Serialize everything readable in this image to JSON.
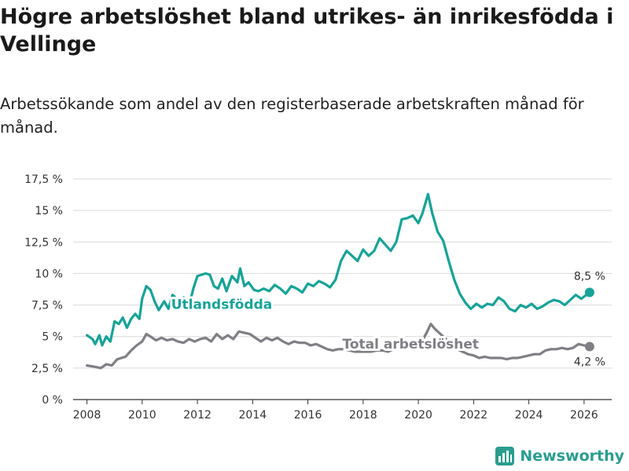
{
  "header": {
    "title": "Högre arbetslöshet bland utrikes- än inrikesfödda i Vellinge",
    "subtitle": "Arbetssökande som andel av den registerbaserade arbetskraften månad för månad."
  },
  "brand": {
    "name": "Newsworthy",
    "color": "#2a9d8f"
  },
  "chart_data": {
    "type": "line",
    "title": "Högre arbetslöshet bland utrikes- än inrikesfödda i Vellinge",
    "subtitle": "Arbetssökande som andel av den registerbaserade arbetskraften månad för månad.",
    "xlabel": "",
    "ylabel": "",
    "xlim": [
      2007.5,
      2027
    ],
    "ylim": [
      0,
      17.5
    ],
    "grid": true,
    "x_ticks": [
      2008,
      2010,
      2012,
      2014,
      2016,
      2018,
      2020,
      2022,
      2024,
      2026
    ],
    "x_tick_labels": [
      "2008",
      "2010",
      "2012",
      "2014",
      "2016",
      "2018",
      "2020",
      "2022",
      "2024",
      "2026"
    ],
    "y_ticks": [
      0,
      2.5,
      5,
      7.5,
      10,
      12.5,
      15,
      17.5
    ],
    "y_tick_labels": [
      "0 %",
      "2,5 %",
      "5 %",
      "7,5 %",
      "10 %",
      "12,5 %",
      "15 %",
      "17,5 %"
    ],
    "series": [
      {
        "name": "Utlandsfödda",
        "color": "#17a398",
        "end_label": "8,5 %",
        "points": [
          [
            2008.0,
            5.1
          ],
          [
            2008.2,
            4.8
          ],
          [
            2008.3,
            4.4
          ],
          [
            2008.45,
            5.1
          ],
          [
            2008.55,
            4.3
          ],
          [
            2008.7,
            5.0
          ],
          [
            2008.85,
            4.6
          ],
          [
            2009.0,
            6.2
          ],
          [
            2009.15,
            6.0
          ],
          [
            2009.3,
            6.5
          ],
          [
            2009.45,
            5.7
          ],
          [
            2009.6,
            6.4
          ],
          [
            2009.75,
            6.8
          ],
          [
            2009.9,
            6.4
          ],
          [
            2010.0,
            8.0
          ],
          [
            2010.15,
            9.0
          ],
          [
            2010.3,
            8.7
          ],
          [
            2010.45,
            7.8
          ],
          [
            2010.6,
            7.1
          ],
          [
            2010.8,
            7.8
          ],
          [
            2010.95,
            7.2
          ],
          [
            2011.1,
            8.3
          ],
          [
            2011.3,
            7.9
          ],
          [
            2011.5,
            8.1
          ],
          [
            2011.7,
            7.4
          ],
          [
            2011.85,
            8.8
          ],
          [
            2012.0,
            9.8
          ],
          [
            2012.3,
            10.0
          ],
          [
            2012.45,
            9.9
          ],
          [
            2012.6,
            9.0
          ],
          [
            2012.75,
            8.8
          ],
          [
            2012.9,
            9.6
          ],
          [
            2013.05,
            8.6
          ],
          [
            2013.25,
            9.8
          ],
          [
            2013.45,
            9.3
          ],
          [
            2013.55,
            10.4
          ],
          [
            2013.7,
            9.0
          ],
          [
            2013.85,
            9.3
          ],
          [
            2014.05,
            8.7
          ],
          [
            2014.2,
            8.6
          ],
          [
            2014.4,
            8.8
          ],
          [
            2014.6,
            8.6
          ],
          [
            2014.8,
            9.1
          ],
          [
            2015.0,
            8.8
          ],
          [
            2015.2,
            8.4
          ],
          [
            2015.4,
            9.0
          ],
          [
            2015.6,
            8.8
          ],
          [
            2015.8,
            8.5
          ],
          [
            2016.0,
            9.2
          ],
          [
            2016.2,
            9.0
          ],
          [
            2016.4,
            9.4
          ],
          [
            2016.6,
            9.2
          ],
          [
            2016.8,
            8.9
          ],
          [
            2017.0,
            9.5
          ],
          [
            2017.2,
            11.0
          ],
          [
            2017.4,
            11.8
          ],
          [
            2017.6,
            11.4
          ],
          [
            2017.8,
            11.0
          ],
          [
            2018.0,
            11.9
          ],
          [
            2018.2,
            11.4
          ],
          [
            2018.4,
            11.8
          ],
          [
            2018.6,
            12.8
          ],
          [
            2018.8,
            12.3
          ],
          [
            2019.0,
            11.8
          ],
          [
            2019.2,
            12.5
          ],
          [
            2019.4,
            14.3
          ],
          [
            2019.6,
            14.4
          ],
          [
            2019.8,
            14.6
          ],
          [
            2020.0,
            14.0
          ],
          [
            2020.15,
            14.8
          ],
          [
            2020.35,
            16.3
          ],
          [
            2020.5,
            14.8
          ],
          [
            2020.7,
            13.3
          ],
          [
            2020.9,
            12.6
          ],
          [
            2021.1,
            11.0
          ],
          [
            2021.3,
            9.5
          ],
          [
            2021.5,
            8.4
          ],
          [
            2021.7,
            7.7
          ],
          [
            2021.9,
            7.2
          ],
          [
            2022.1,
            7.6
          ],
          [
            2022.3,
            7.3
          ],
          [
            2022.5,
            7.6
          ],
          [
            2022.7,
            7.5
          ],
          [
            2022.9,
            8.1
          ],
          [
            2023.1,
            7.8
          ],
          [
            2023.3,
            7.2
          ],
          [
            2023.5,
            7.0
          ],
          [
            2023.7,
            7.5
          ],
          [
            2023.9,
            7.3
          ],
          [
            2024.1,
            7.6
          ],
          [
            2024.3,
            7.2
          ],
          [
            2024.5,
            7.4
          ],
          [
            2024.7,
            7.7
          ],
          [
            2024.9,
            7.9
          ],
          [
            2025.1,
            7.8
          ],
          [
            2025.3,
            7.5
          ],
          [
            2025.5,
            7.9
          ],
          [
            2025.7,
            8.3
          ],
          [
            2025.9,
            8.0
          ],
          [
            2026.2,
            8.5
          ]
        ]
      },
      {
        "name": "Total arbetslöshet",
        "color": "#7f7f85",
        "end_label": "4,2 %",
        "points": [
          [
            2008.0,
            2.7
          ],
          [
            2008.3,
            2.6
          ],
          [
            2008.5,
            2.5
          ],
          [
            2008.7,
            2.8
          ],
          [
            2008.9,
            2.7
          ],
          [
            2009.1,
            3.2
          ],
          [
            2009.4,
            3.4
          ],
          [
            2009.6,
            3.9
          ],
          [
            2009.8,
            4.3
          ],
          [
            2010.0,
            4.6
          ],
          [
            2010.15,
            5.2
          ],
          [
            2010.3,
            5.0
          ],
          [
            2010.5,
            4.7
          ],
          [
            2010.7,
            4.9
          ],
          [
            2010.9,
            4.7
          ],
          [
            2011.1,
            4.8
          ],
          [
            2011.3,
            4.6
          ],
          [
            2011.5,
            4.5
          ],
          [
            2011.7,
            4.8
          ],
          [
            2011.9,
            4.6
          ],
          [
            2012.1,
            4.8
          ],
          [
            2012.3,
            4.9
          ],
          [
            2012.5,
            4.6
          ],
          [
            2012.7,
            5.2
          ],
          [
            2012.9,
            4.8
          ],
          [
            2013.1,
            5.1
          ],
          [
            2013.3,
            4.8
          ],
          [
            2013.5,
            5.4
          ],
          [
            2013.7,
            5.3
          ],
          [
            2013.9,
            5.2
          ],
          [
            2014.1,
            4.9
          ],
          [
            2014.3,
            4.6
          ],
          [
            2014.5,
            4.9
          ],
          [
            2014.7,
            4.7
          ],
          [
            2014.9,
            4.9
          ],
          [
            2015.1,
            4.6
          ],
          [
            2015.3,
            4.4
          ],
          [
            2015.5,
            4.6
          ],
          [
            2015.7,
            4.5
          ],
          [
            2015.9,
            4.5
          ],
          [
            2016.1,
            4.3
          ],
          [
            2016.3,
            4.4
          ],
          [
            2016.5,
            4.2
          ],
          [
            2016.7,
            4.0
          ],
          [
            2016.9,
            3.9
          ],
          [
            2017.1,
            4.0
          ],
          [
            2017.3,
            4.0
          ],
          [
            2017.5,
            3.9
          ],
          [
            2017.7,
            3.8
          ],
          [
            2017.9,
            3.8
          ],
          [
            2018.1,
            3.8
          ],
          [
            2018.3,
            3.8
          ],
          [
            2018.5,
            3.9
          ],
          [
            2018.7,
            3.9
          ],
          [
            2018.9,
            3.8
          ],
          [
            2019.1,
            4.0
          ],
          [
            2019.3,
            4.0
          ],
          [
            2019.5,
            4.1
          ],
          [
            2019.7,
            4.2
          ],
          [
            2019.9,
            4.1
          ],
          [
            2020.1,
            4.5
          ],
          [
            2020.3,
            5.3
          ],
          [
            2020.45,
            6.0
          ],
          [
            2020.6,
            5.6
          ],
          [
            2020.8,
            5.2
          ],
          [
            2021.0,
            4.8
          ],
          [
            2021.2,
            4.4
          ],
          [
            2021.4,
            4.0
          ],
          [
            2021.6,
            3.8
          ],
          [
            2021.8,
            3.6
          ],
          [
            2022.0,
            3.5
          ],
          [
            2022.2,
            3.3
          ],
          [
            2022.4,
            3.4
          ],
          [
            2022.6,
            3.3
          ],
          [
            2022.8,
            3.3
          ],
          [
            2023.0,
            3.3
          ],
          [
            2023.2,
            3.2
          ],
          [
            2023.4,
            3.3
          ],
          [
            2023.6,
            3.3
          ],
          [
            2023.8,
            3.4
          ],
          [
            2024.0,
            3.5
          ],
          [
            2024.2,
            3.6
          ],
          [
            2024.4,
            3.6
          ],
          [
            2024.6,
            3.9
          ],
          [
            2024.8,
            4.0
          ],
          [
            2025.0,
            4.0
          ],
          [
            2025.2,
            4.1
          ],
          [
            2025.4,
            4.0
          ],
          [
            2025.6,
            4.1
          ],
          [
            2025.8,
            4.4
          ],
          [
            2026.0,
            4.3
          ],
          [
            2026.2,
            4.2
          ]
        ]
      }
    ]
  }
}
